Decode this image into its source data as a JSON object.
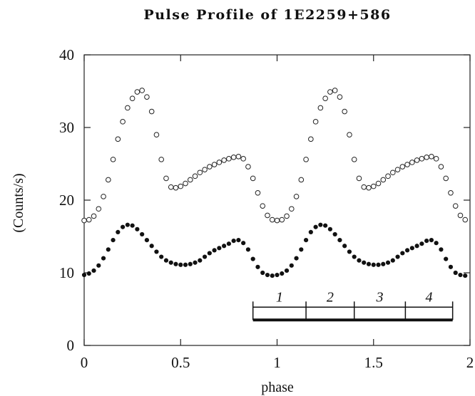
{
  "chart_data": {
    "type": "scatter",
    "title": "Pulse Profile of 1E2259+586",
    "xlabel": "phase",
    "ylabel": "(Counts/s)",
    "xlim": [
      0,
      2
    ],
    "ylim": [
      0,
      40
    ],
    "x_ticks": [
      0,
      0.5,
      1,
      1.5,
      2
    ],
    "x_tick_labels": [
      "0",
      "0.5",
      "1",
      "1.5",
      "2"
    ],
    "y_ticks": [
      0,
      10,
      20,
      30,
      40
    ],
    "y_tick_labels": [
      "0",
      "10",
      "20",
      "30",
      "40"
    ],
    "grid": false,
    "legend": "none",
    "phase_one_cycle": [
      0.0,
      0.025,
      0.05,
      0.075,
      0.1,
      0.125,
      0.15,
      0.175,
      0.2,
      0.225,
      0.25,
      0.275,
      0.3,
      0.325,
      0.35,
      0.375,
      0.4,
      0.425,
      0.45,
      0.475,
      0.5,
      0.525,
      0.55,
      0.575,
      0.6,
      0.625,
      0.65,
      0.675,
      0.7,
      0.725,
      0.75,
      0.775,
      0.8,
      0.825,
      0.85,
      0.875,
      0.9,
      0.925,
      0.95,
      0.975
    ],
    "series": [
      {
        "marker": "open-circle",
        "values_one_cycle": [
          17.2,
          17.3,
          17.8,
          18.8,
          20.5,
          22.8,
          25.6,
          28.4,
          30.8,
          32.7,
          34.0,
          34.9,
          35.1,
          34.2,
          32.2,
          29.0,
          25.6,
          23.0,
          21.8,
          21.7,
          21.9,
          22.3,
          22.8,
          23.3,
          23.8,
          24.2,
          24.6,
          24.9,
          25.2,
          25.5,
          25.7,
          25.9,
          26.0,
          25.7,
          24.6,
          23.0,
          21.0,
          19.2,
          17.9,
          17.3
        ]
      },
      {
        "marker": "filled-circle",
        "values_one_cycle": [
          9.7,
          9.9,
          10.3,
          11.0,
          12.0,
          13.2,
          14.5,
          15.6,
          16.3,
          16.6,
          16.5,
          16.0,
          15.3,
          14.5,
          13.7,
          12.9,
          12.2,
          11.7,
          11.4,
          11.2,
          11.1,
          11.1,
          11.2,
          11.4,
          11.7,
          12.2,
          12.7,
          13.1,
          13.4,
          13.7,
          14.0,
          14.4,
          14.5,
          14.1,
          13.2,
          11.9,
          10.8,
          10.0,
          9.7,
          9.6
        ]
      }
    ],
    "annotation_segments": {
      "bar_y": 3.5,
      "boundaries": [
        0.875,
        1.15,
        1.4,
        1.665,
        1.91
      ],
      "labels": [
        "1",
        "2",
        "3",
        "4"
      ]
    }
  }
}
